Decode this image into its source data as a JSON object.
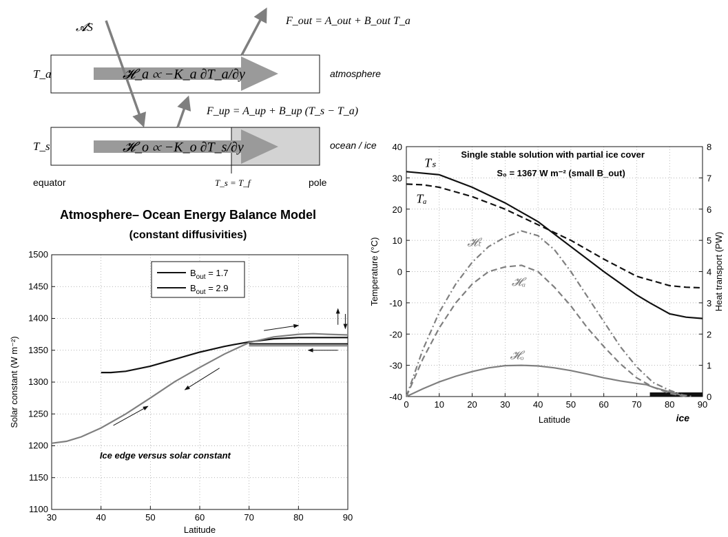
{
  "colors": {
    "black": "#111111",
    "gray": "#7f7f7f",
    "arrow": "#9a9a9a",
    "ice_box": "#d3d3d3"
  },
  "schematic": {
    "label_AS": "𝓐S",
    "Fout": "F_out = A_out + B_out T_a",
    "Fup": "F_up = A_up + B_up (T_s − T_a)",
    "Ta": "T_a",
    "Ts": "T_s",
    "Ha": "𝓗_a ∝ −K_a ∂T_a/∂y",
    "Ho": "𝓗_o ∝ −K_o ∂T_s/∂y",
    "atmosphere": "atmosphere",
    "ocean_ice": "ocean / ice",
    "equator": "equator",
    "TsTf": "T_s = T_f",
    "pole": "pole"
  },
  "model_title": {
    "line1": "Atmosphere– Ocean Energy Balance Model",
    "line2": "(constant diffusivities)"
  },
  "chart_data": [
    {
      "type": "line",
      "title": "",
      "xlabel": "Latitude",
      "ylabel": "Solar constant (W m⁻²)",
      "xlim": [
        30,
        90
      ],
      "ylim": [
        1100,
        1500
      ],
      "xticks": [
        30,
        40,
        50,
        60,
        70,
        80,
        90
      ],
      "yticks": [
        1100,
        1150,
        1200,
        1250,
        1300,
        1350,
        1400,
        1450,
        1500
      ],
      "grid": true,
      "legend_position": "top-center",
      "annotation": "Ice edge versus solar constant",
      "series": [
        {
          "name": "B_out = 1.7",
          "color": "#111111",
          "x": [
            40,
            42,
            45,
            50,
            55,
            60,
            65,
            67,
            70,
            75,
            80,
            85,
            90
          ],
          "y": [
            1315,
            1315,
            1317,
            1325,
            1336,
            1347,
            1356,
            1359,
            1363,
            1368,
            1370,
            1370,
            1370
          ]
        },
        {
          "name": "B_out = 2.9",
          "color": "#7f7f7f",
          "x": [
            30,
            33,
            36,
            40,
            45,
            50,
            55,
            60,
            65,
            70,
            75,
            80,
            83,
            86,
            90
          ],
          "y": [
            1204,
            1207,
            1214,
            1228,
            1250,
            1275,
            1301,
            1323,
            1344,
            1362,
            1371,
            1375,
            1376,
            1375,
            1374
          ]
        }
      ],
      "hlines": [
        1360,
        1357
      ]
    },
    {
      "type": "line",
      "title": "Single stable solution with partial ice cover",
      "subtitle": "S₀ = 1367 W m⁻² (small B_out)",
      "xlabel": "Latitude",
      "ylabel": "Temperature (°C)",
      "y2label": "Heat transport (PW)",
      "xlim": [
        0,
        90
      ],
      "ylim": [
        -40,
        40
      ],
      "y2lim": [
        0,
        8
      ],
      "xticks": [
        0,
        10,
        20,
        30,
        40,
        50,
        60,
        70,
        80,
        90
      ],
      "yticks": [
        -40,
        -30,
        -20,
        -10,
        0,
        10,
        20,
        30,
        40
      ],
      "y2ticks": [
        0,
        1,
        2,
        3,
        4,
        5,
        6,
        7,
        8
      ],
      "grid": true,
      "ice_label": "ice",
      "ice_range": [
        74,
        90
      ],
      "series": [
        {
          "name": "T_s",
          "label": "Tₛ",
          "axis": "left",
          "color": "#111111",
          "style": "solid",
          "x": [
            0,
            10,
            20,
            30,
            40,
            50,
            60,
            70,
            74,
            80,
            85,
            90
          ],
          "y": [
            32,
            31,
            27,
            22,
            16,
            8,
            0,
            -7.5,
            -10,
            -13.5,
            -14.6,
            -15
          ]
        },
        {
          "name": "T_a",
          "label": "Tₐ",
          "axis": "left",
          "color": "#111111",
          "style": "dashed",
          "x": [
            0,
            5,
            10,
            20,
            30,
            40,
            50,
            60,
            70,
            80,
            85,
            90
          ],
          "y": [
            28,
            27.8,
            27,
            24,
            20,
            15,
            10,
            4,
            -1.5,
            -4.5,
            -5,
            -5.2
          ]
        },
        {
          "name": "H_t",
          "label": "𝓗ₜ",
          "axis": "right",
          "color": "#7f7f7f",
          "style": "dashdot",
          "x": [
            0,
            5,
            10,
            15,
            20,
            25,
            30,
            35,
            40,
            45,
            50,
            55,
            60,
            65,
            70,
            75,
            80,
            84,
            87
          ],
          "y": [
            0,
            1.5,
            2.7,
            3.6,
            4.3,
            4.8,
            5.1,
            5.3,
            5.15,
            4.7,
            4.0,
            3.2,
            2.4,
            1.6,
            0.95,
            0.45,
            0.2,
            0.05,
            0
          ]
        },
        {
          "name": "H_a",
          "label": "𝓗ₐ",
          "axis": "right",
          "color": "#7f7f7f",
          "style": "dashed",
          "x": [
            0,
            5,
            10,
            15,
            20,
            25,
            30,
            35,
            40,
            45,
            50,
            55,
            60,
            65,
            70,
            75,
            80,
            85
          ],
          "y": [
            0,
            1.2,
            2.2,
            3.0,
            3.6,
            4.0,
            4.15,
            4.2,
            4.0,
            3.5,
            2.9,
            2.2,
            1.6,
            1.05,
            0.6,
            0.3,
            0.1,
            0
          ]
        },
        {
          "name": "H_o",
          "label": "𝓗ₒ",
          "axis": "right",
          "color": "#7f7f7f",
          "style": "solid",
          "x": [
            0,
            5,
            10,
            15,
            20,
            25,
            30,
            35,
            40,
            45,
            50,
            55,
            60,
            65,
            70,
            73,
            75,
            80,
            85
          ],
          "y": [
            0,
            0.25,
            0.47,
            0.65,
            0.8,
            0.92,
            0.99,
            1.0,
            0.98,
            0.92,
            0.83,
            0.72,
            0.6,
            0.5,
            0.42,
            0.38,
            0.3,
            0.15,
            0
          ]
        }
      ]
    }
  ]
}
